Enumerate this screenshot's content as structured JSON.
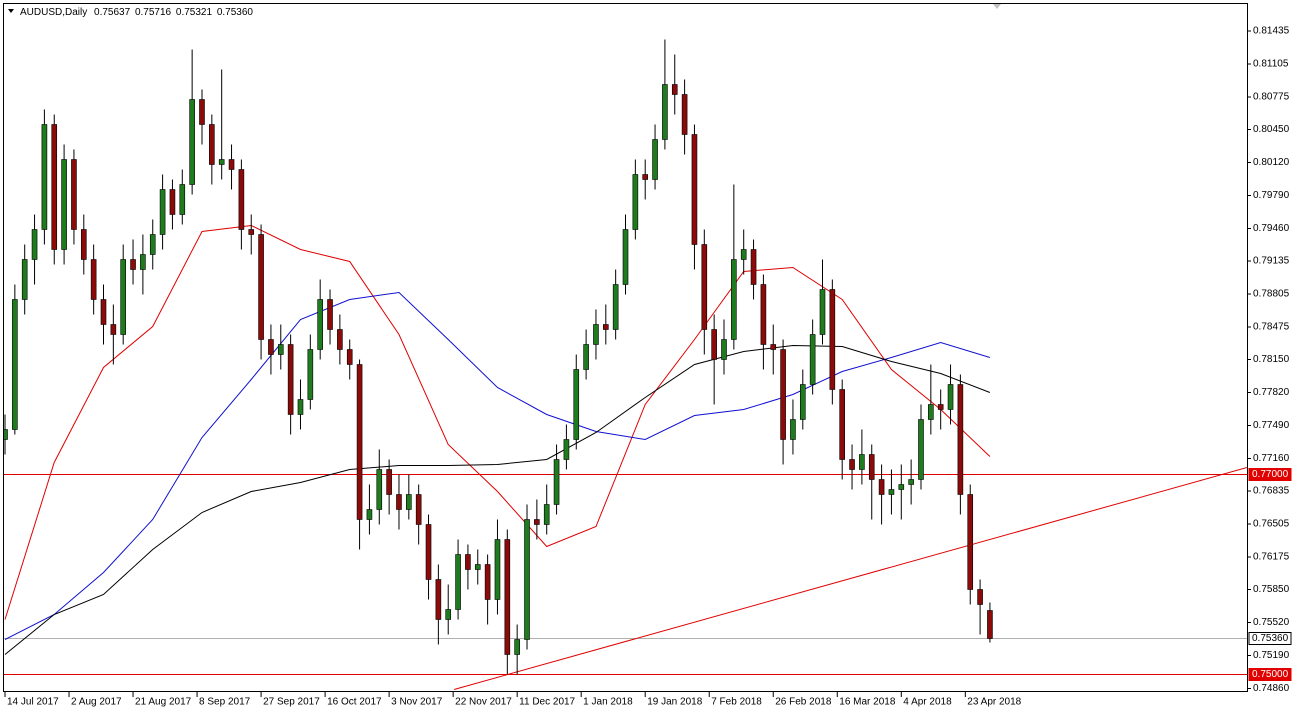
{
  "chart_data": {
    "type": "candlestick",
    "symbol": "AUDUSD,Daily",
    "quote": [
      "0.75637",
      "0.75716",
      "0.75321",
      "0.75360"
    ],
    "up_color": "#1e7b1e",
    "down_color": "#8b0a0a",
    "ylim": [
      0.74825,
      0.81715
    ],
    "yticks": [
      0.81435,
      0.81105,
      0.80775,
      {
        "value": 0.8045,
        "label": "0.80450"
      },
      {
        "value": 0.8012,
        "label": "0.80120"
      },
      {
        "value": 0.7979,
        "label": "0.79790"
      },
      {
        "value": 0.7946,
        "label": "0.79460"
      },
      0.79135,
      0.78805,
      0.78475,
      {
        "value": 0.7815,
        "label": "0.78150"
      },
      {
        "value": 0.7782,
        "label": "0.77820"
      },
      {
        "value": 0.7749,
        "label": "0.77490"
      },
      {
        "value": 0.7716,
        "label": "0.77160"
      },
      0.76835,
      0.76505,
      0.76175,
      {
        "value": 0.7585,
        "label": "0.75850"
      },
      {
        "value": 0.7552,
        "label": "0.75520"
      },
      {
        "value": 0.7519,
        "label": "0.75190"
      },
      {
        "value": 0.7486,
        "label": "0.74860"
      }
    ],
    "xlim": [
      0,
      126.1
    ],
    "xticks": [
      {
        "value": 0,
        "label": "14 Jul 2017"
      },
      {
        "value": 6.5,
        "label": "2 Aug 2017"
      },
      {
        "value": 13,
        "label": "21 Aug 2017"
      },
      {
        "value": 19.5,
        "label": "8 Sep 2017"
      },
      {
        "value": 26,
        "label": "27 Sep 2017"
      },
      {
        "value": 32.5,
        "label": "16 Oct 2017"
      },
      {
        "value": 39,
        "label": "3 Nov 2017"
      },
      {
        "value": 45.5,
        "label": "22 Nov 2017"
      },
      {
        "value": 52,
        "label": "11 Dec 2017"
      },
      {
        "value": 58.5,
        "label": "1 Jan 2018"
      },
      {
        "value": 65,
        "label": "19 Jan 2018"
      },
      {
        "value": 71.5,
        "label": "7 Feb 2018"
      },
      {
        "value": 78,
        "label": "26 Feb 2018"
      },
      {
        "value": 84.5,
        "label": "16 Mar 2018"
      },
      {
        "value": 91,
        "label": "4 Apr 2018"
      },
      {
        "value": 97.5,
        "label": "23 Apr 2018"
      }
    ],
    "candles": [
      [
        0.7735,
        0.776,
        0.772,
        0.7745
      ],
      [
        0.7745,
        0.789,
        0.774,
        0.7875
      ],
      [
        0.7875,
        0.793,
        0.786,
        0.7915
      ],
      [
        0.7915,
        0.796,
        0.789,
        0.7945
      ],
      [
        0.7945,
        0.8065,
        0.793,
        0.805
      ],
      [
        0.805,
        0.806,
        0.791,
        0.7925
      ],
      [
        0.7925,
        0.803,
        0.791,
        0.8015
      ],
      [
        0.8015,
        0.8025,
        0.793,
        0.7945
      ],
      [
        0.7945,
        0.796,
        0.79,
        0.7915
      ],
      [
        0.7915,
        0.793,
        0.786,
        0.7875
      ],
      [
        0.7875,
        0.789,
        0.783,
        0.785
      ],
      [
        0.785,
        0.787,
        0.781,
        0.784
      ],
      [
        0.784,
        0.793,
        0.783,
        0.7915
      ],
      [
        0.7915,
        0.7935,
        0.789,
        0.7905
      ],
      [
        0.7905,
        0.794,
        0.788,
        0.792
      ],
      [
        0.792,
        0.7955,
        0.7905,
        0.794
      ],
      [
        0.794,
        0.8,
        0.7925,
        0.7985
      ],
      [
        0.7985,
        0.7995,
        0.7945,
        0.796
      ],
      [
        0.796,
        0.8005,
        0.795,
        0.799
      ],
      [
        0.799,
        0.8125,
        0.798,
        0.8075
      ],
      [
        0.8075,
        0.8085,
        0.803,
        0.805
      ],
      [
        0.805,
        0.806,
        0.799,
        0.801
      ],
      [
        0.801,
        0.8105,
        0.7995,
        0.8015
      ],
      [
        0.8015,
        0.803,
        0.7985,
        0.8005
      ],
      [
        0.8005,
        0.8015,
        0.7925,
        0.7945
      ],
      [
        0.7945,
        0.796,
        0.792,
        0.794
      ],
      [
        0.794,
        0.795,
        0.7815,
        0.7835
      ],
      [
        0.7835,
        0.785,
        0.78,
        0.782
      ],
      [
        0.782,
        0.785,
        0.7805,
        0.783
      ],
      [
        0.783,
        0.784,
        0.774,
        0.776
      ],
      [
        0.776,
        0.7795,
        0.7745,
        0.7775
      ],
      [
        0.7775,
        0.784,
        0.7765,
        0.7825
      ],
      [
        0.7825,
        0.7895,
        0.7815,
        0.7875
      ],
      [
        0.7875,
        0.7885,
        0.783,
        0.7845
      ],
      [
        0.7845,
        0.786,
        0.781,
        0.7825
      ],
      [
        0.7825,
        0.7835,
        0.7795,
        0.781
      ],
      [
        0.781,
        0.7815,
        0.7625,
        0.7655
      ],
      [
        0.7655,
        0.769,
        0.764,
        0.7665
      ],
      [
        0.7665,
        0.7725,
        0.765,
        0.7705
      ],
      [
        0.7705,
        0.7715,
        0.766,
        0.768
      ],
      [
        0.768,
        0.77,
        0.7645,
        0.7665
      ],
      [
        0.7665,
        0.77,
        0.7655,
        0.768
      ],
      [
        0.768,
        0.769,
        0.763,
        0.765
      ],
      [
        0.765,
        0.766,
        0.7575,
        0.7595
      ],
      [
        0.7595,
        0.761,
        0.753,
        0.7555
      ],
      [
        0.7555,
        0.759,
        0.754,
        0.7565
      ],
      [
        0.7565,
        0.7635,
        0.7555,
        0.762
      ],
      [
        0.762,
        0.763,
        0.7585,
        0.7605
      ],
      [
        0.7605,
        0.7625,
        0.759,
        0.761
      ],
      [
        0.761,
        0.762,
        0.755,
        0.7575
      ],
      [
        0.7575,
        0.7655,
        0.756,
        0.7635
      ],
      [
        0.7635,
        0.7645,
        0.75,
        0.752
      ],
      [
        0.752,
        0.755,
        0.75,
        0.7535
      ],
      [
        0.7535,
        0.767,
        0.7525,
        0.7655
      ],
      [
        0.7655,
        0.7675,
        0.7635,
        0.765
      ],
      [
        0.765,
        0.769,
        0.764,
        0.767
      ],
      [
        0.767,
        0.773,
        0.766,
        0.7715
      ],
      [
        0.7715,
        0.775,
        0.7705,
        0.7735
      ],
      [
        0.7735,
        0.782,
        0.7725,
        0.7805
      ],
      [
        0.7805,
        0.7845,
        0.7795,
        0.783
      ],
      [
        0.783,
        0.7865,
        0.7815,
        0.785
      ],
      [
        0.785,
        0.787,
        0.783,
        0.7845
      ],
      [
        0.7845,
        0.7905,
        0.7835,
        0.789
      ],
      [
        0.789,
        0.796,
        0.788,
        0.7945
      ],
      [
        0.7945,
        0.8015,
        0.7935,
        0.8
      ],
      [
        0.8,
        0.8015,
        0.7975,
        0.7995
      ],
      [
        0.7995,
        0.805,
        0.7985,
        0.8035
      ],
      [
        0.8035,
        0.8135,
        0.8025,
        0.809
      ],
      [
        0.809,
        0.812,
        0.806,
        0.808
      ],
      [
        0.808,
        0.8095,
        0.802,
        0.804
      ],
      [
        0.804,
        0.805,
        0.7905,
        0.793
      ],
      [
        0.793,
        0.7945,
        0.782,
        0.7845
      ],
      [
        0.7845,
        0.786,
        0.777,
        0.7815
      ],
      [
        0.7815,
        0.7855,
        0.78,
        0.7835
      ],
      [
        0.7835,
        0.799,
        0.7825,
        0.7915
      ],
      [
        0.7915,
        0.7945,
        0.79,
        0.7925
      ],
      [
        0.7925,
        0.7935,
        0.7875,
        0.789
      ],
      [
        0.789,
        0.79,
        0.7805,
        0.783
      ],
      [
        0.783,
        0.785,
        0.78,
        0.7825
      ],
      [
        0.7825,
        0.7835,
        0.771,
        0.7735
      ],
      [
        0.7735,
        0.7775,
        0.772,
        0.7755
      ],
      [
        0.7755,
        0.7805,
        0.7745,
        0.779
      ],
      [
        0.779,
        0.7855,
        0.778,
        0.784
      ],
      [
        0.784,
        0.7915,
        0.783,
        0.7885
      ],
      [
        0.7885,
        0.7895,
        0.777,
        0.7785
      ],
      [
        0.7785,
        0.7795,
        0.7695,
        0.7715
      ],
      [
        0.7715,
        0.773,
        0.7685,
        0.7705
      ],
      [
        0.7705,
        0.7745,
        0.769,
        0.772
      ],
      [
        0.772,
        0.773,
        0.7655,
        0.7695
      ],
      [
        0.7695,
        0.771,
        0.765,
        0.768
      ],
      [
        0.768,
        0.7705,
        0.766,
        0.7685
      ],
      [
        0.7685,
        0.771,
        0.7655,
        0.769
      ],
      [
        0.769,
        0.7715,
        0.767,
        0.7695
      ],
      [
        0.7695,
        0.777,
        0.7685,
        0.7755
      ],
      [
        0.7755,
        0.781,
        0.774,
        0.777
      ],
      [
        0.777,
        0.7785,
        0.7745,
        0.7765
      ],
      [
        0.7765,
        0.781,
        0.775,
        0.779
      ],
      [
        0.779,
        0.78,
        0.766,
        0.768
      ],
      [
        0.768,
        0.769,
        0.757,
        0.7585
      ],
      [
        0.7585,
        0.7595,
        0.754,
        0.757
      ],
      [
        0.7564,
        0.7572,
        0.7532,
        0.7536
      ]
    ],
    "ma_x": [
      0,
      5,
      10,
      15,
      20,
      25,
      30,
      35,
      40,
      45,
      50,
      55,
      60,
      65,
      70,
      75,
      80,
      85,
      90,
      95,
      100
    ],
    "moving_averages": [
      {
        "color": "#e00000",
        "values": [
          0.7555,
          0.7712,
          0.7807,
          0.7848,
          0.7943,
          0.7949,
          0.7925,
          0.7913,
          0.784,
          0.773,
          0.7683,
          0.7628,
          0.7648,
          0.777,
          0.7835,
          0.7903,
          0.7907,
          0.7875,
          0.7805,
          0.7765,
          0.7718
        ]
      },
      {
        "color": "#1010d0",
        "values": [
          0.7535,
          0.756,
          0.7602,
          0.7655,
          0.7737,
          0.7795,
          0.7855,
          0.7875,
          0.7882,
          0.7835,
          0.7787,
          0.776,
          0.7743,
          0.7735,
          0.7759,
          0.7765,
          0.778,
          0.7803,
          0.7817,
          0.7832,
          0.7817
        ]
      },
      {
        "color": "#000000",
        "values": [
          0.752,
          0.756,
          0.758,
          0.7625,
          0.7662,
          0.7683,
          0.7692,
          0.7705,
          0.7709,
          0.7709,
          0.771,
          0.7715,
          0.7742,
          0.7777,
          0.781,
          0.7823,
          0.7829,
          0.7828,
          0.7813,
          0.7801,
          0.7782
        ]
      }
    ],
    "trendline": {
      "color": "#e00000",
      "x": [
        45.6,
        126.1
      ],
      "values": [
        0.7485,
        0.7707
      ]
    },
    "levels": [
      {
        "value": 0.77,
        "label": "0.77000",
        "color": "#e00000"
      },
      {
        "value": 0.75,
        "label": "0.75000",
        "color": "#e00000"
      },
      {
        "value": 0.7536,
        "label": "0.75360",
        "color": "#b0b0b0"
      }
    ]
  }
}
